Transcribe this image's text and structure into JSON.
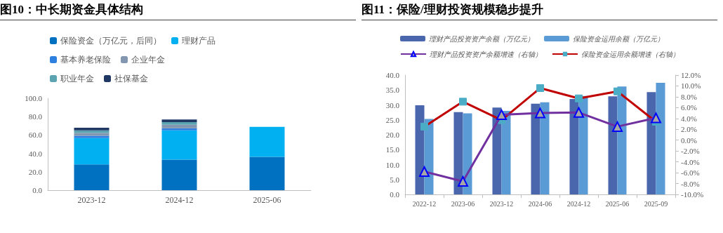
{
  "chart_data": [
    {
      "type": "bar",
      "title": "图10：中长期资金具体结构",
      "stacked": true,
      "legend": "top",
      "categories": [
        "2023-12",
        "2024-12",
        "2025-06"
      ],
      "series": [
        {
          "name": "保险资金（万亿元，后同）",
          "color": "#0070c0",
          "values": [
            28.0,
            33.2,
            36.3
          ]
        },
        {
          "name": "理财产品",
          "color": "#00b0f0",
          "values": [
            28.7,
            31.8,
            32.6
          ]
        },
        {
          "name": "基本养老保险",
          "color": "#2e80e0",
          "values": [
            2.4,
            2.4,
            null
          ]
        },
        {
          "name": "企业年金",
          "color": "#8497b0",
          "values": [
            3.1,
            3.8,
            null
          ]
        },
        {
          "name": "职业年金",
          "color": "#5ba3b0",
          "values": [
            2.8,
            2.9,
            null
          ]
        },
        {
          "name": "社保基金",
          "color": "#203864",
          "values": [
            2.9,
            2.8,
            null
          ]
        }
      ],
      "ylim": [
        0,
        100
      ],
      "yticks": [
        {
          "value": 0,
          "label": "0.0"
        },
        {
          "value": 20,
          "label": "20.0"
        },
        {
          "value": 40,
          "label": "40.0"
        },
        {
          "value": 60,
          "label": "60.0"
        },
        {
          "value": 80,
          "label": "80.0"
        },
        {
          "value": 100,
          "label": "100.0"
        }
      ]
    },
    {
      "type": "bar",
      "title": "图11：保险/理财投资规模稳步提升",
      "legend": "top",
      "categories": [
        "2022-12",
        "2023-06",
        "2023-12",
        "2024-06",
        "2024-12",
        "2025-06",
        "2025-09"
      ],
      "series": [
        {
          "name": "理财产品投资资产余额（万亿元）",
          "color": "#4a66ac",
          "values": [
            29.9,
            27.6,
            29.1,
            30.4,
            32.0,
            32.9,
            34.3
          ]
        },
        {
          "name": "保险资金运用余额（万亿元）",
          "color": "#5b9bd5",
          "values": [
            25.3,
            27.2,
            28.0,
            30.9,
            33.0,
            36.2,
            37.4
          ]
        },
        {
          "name": "理财产品投资资产余额增速（右轴）",
          "type": "line",
          "axis": "y2",
          "marker": "triangle",
          "color": "#7030a0",
          "values": [
            -5.8,
            -7.6,
            4.7,
            5.0,
            5.1,
            2.5,
            4.1
          ]
        },
        {
          "name": "保险资金运用余额增速（右轴）",
          "type": "line",
          "axis": "y2",
          "marker": "square",
          "color": "#c00000",
          "values": [
            2.5,
            7.1,
            3.7,
            9.6,
            7.7,
            9.0,
            3.4
          ]
        }
      ],
      "ylim": [
        0,
        40
      ],
      "yticks": [
        {
          "value": 0,
          "label": "0.0"
        },
        {
          "value": 5,
          "label": "5.0"
        },
        {
          "value": 10,
          "label": "10.0"
        },
        {
          "value": 15,
          "label": "15.0"
        },
        {
          "value": 20,
          "label": "20.0"
        },
        {
          "value": 25,
          "label": "25.0"
        },
        {
          "value": 30,
          "label": "30.0"
        },
        {
          "value": 35,
          "label": "35.0"
        },
        {
          "value": 40,
          "label": "40.0"
        }
      ],
      "y2lim": [
        -10,
        12
      ],
      "y2ticks": [
        {
          "value": -10,
          "label": "-10.0%"
        },
        {
          "value": -8,
          "label": "-8.0%"
        },
        {
          "value": -6,
          "label": "-6.0%"
        },
        {
          "value": -4,
          "label": "-4.0%"
        },
        {
          "value": -2,
          "label": "-2.0%"
        },
        {
          "value": 0,
          "label": "0.0%"
        },
        {
          "value": 2,
          "label": "2.0%"
        },
        {
          "value": 4,
          "label": "4.0%"
        },
        {
          "value": 6,
          "label": "6.0%"
        },
        {
          "value": 8,
          "label": "8.0%"
        },
        {
          "value": 10,
          "label": "10.0%"
        },
        {
          "value": 12,
          "label": "12.0%"
        }
      ]
    }
  ]
}
